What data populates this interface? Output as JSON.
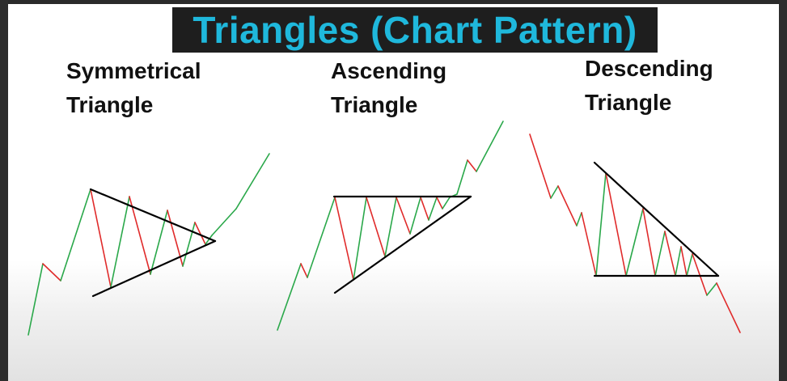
{
  "title": "Triangles (Chart Pattern)",
  "patterns": [
    {
      "line1": "Symmetrical",
      "line2": "Triangle"
    },
    {
      "line1": "Ascending",
      "line2": "Triangle"
    },
    {
      "line1": "Descending",
      "line2": "Triangle"
    }
  ],
  "colors": {
    "title_text": "#1fb8dc",
    "title_background": "#1e1e1e",
    "up_move": "#2aa84a",
    "down_move": "#e02b2b",
    "trendline": "#000000"
  }
}
